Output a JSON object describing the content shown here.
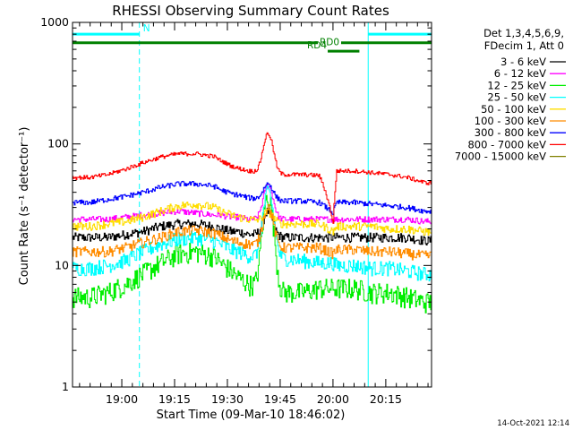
{
  "chart_data": {
    "type": "line",
    "title": "RHESSI Observing Summary Count Rates",
    "xlabel": "Start Time (09-Mar-10 18:46:02)",
    "ylabel": "Count Rate (s⁻¹ detector⁻¹)",
    "y_scale": "log",
    "ylim": [
      1,
      1000
    ],
    "y_ticks": [
      1,
      10,
      100,
      1000
    ],
    "y_tick_labels": [
      "1",
      "10",
      "100",
      "1000"
    ],
    "x_ticks": [
      "19:00",
      "19:15",
      "19:30",
      "19:45",
      "20:00",
      "20:15"
    ],
    "x_tick_minutes": [
      14,
      29,
      44,
      59,
      74,
      89
    ],
    "xlim_minutes": [
      0,
      102
    ],
    "grid": false,
    "legend_position": "right",
    "header": [
      "Det 1,3,4,5,6,9,",
      "FDecim 1, Att 0"
    ],
    "footer_date": "14-Oct-2021 12:14",
    "time_points_min": [
      0,
      5,
      10,
      15,
      20,
      25,
      30,
      35,
      40,
      42,
      45,
      47,
      50,
      55,
      60,
      65,
      70,
      74,
      75,
      80,
      85,
      90,
      95,
      100
    ],
    "series": [
      {
        "name": "3 - 6 keV",
        "color": "#000000",
        "values": [
          17,
          17,
          17,
          18,
          19,
          21,
          22,
          22,
          21,
          20,
          19,
          19,
          18,
          18,
          17,
          17,
          17,
          17,
          17,
          17,
          17,
          17,
          17,
          16
        ]
      },
      {
        "name": "6 - 12 keV",
        "color": "#ff00ff",
        "values": [
          24,
          24,
          24,
          25,
          26,
          27,
          28,
          27,
          26,
          26,
          25,
          25,
          24,
          24,
          24,
          24,
          24,
          24,
          24,
          24,
          24,
          24,
          24,
          23
        ]
      },
      {
        "name": "12 - 25 keV",
        "color": "#00ee00",
        "values": [
          5.5,
          5.5,
          6,
          7,
          8.5,
          10.5,
          12.5,
          13,
          12,
          10.5,
          9,
          8,
          7,
          6.5,
          6,
          6,
          6.5,
          6.5,
          6.5,
          6.5,
          6,
          6,
          5.5,
          5
        ]
      },
      {
        "name": "25 - 50 keV",
        "color": "#00ffff",
        "values": [
          9.5,
          9.5,
          10,
          11,
          13,
          15,
          16.5,
          17,
          16,
          15,
          13.5,
          13,
          12,
          11.5,
          11.5,
          11,
          10.5,
          10.5,
          10,
          10,
          9.5,
          9.5,
          9,
          8.5
        ]
      },
      {
        "name": "50 - 100 keV",
        "color": "#ffdd00",
        "values": [
          21,
          21,
          22,
          23,
          25,
          28,
          31,
          32,
          30,
          28,
          26,
          25,
          24,
          23,
          22,
          22,
          22,
          19,
          21,
          21,
          21,
          20,
          20,
          19
        ]
      },
      {
        "name": "100 - 300 keV",
        "color": "#ff8c00",
        "values": [
          13,
          13,
          13,
          14,
          15.5,
          17,
          19,
          19.5,
          18.5,
          17.5,
          16,
          15.5,
          15,
          14.5,
          14,
          14,
          14,
          12.5,
          13.5,
          13.5,
          13,
          13,
          12.5,
          12
        ]
      },
      {
        "name": "300 - 800 keV",
        "color": "#0000ff",
        "values": [
          33,
          33,
          35,
          37,
          40,
          44,
          47,
          47,
          45,
          42,
          39,
          38,
          36,
          35,
          34,
          34,
          33,
          27,
          33,
          33,
          32,
          31,
          30,
          28
        ]
      },
      {
        "name": "800 - 7000 keV",
        "color": "#ff0000",
        "values": [
          53,
          53,
          56,
          62,
          70,
          78,
          83,
          83,
          79,
          73,
          66,
          63,
          60,
          58,
          56,
          56,
          55,
          22,
          60,
          60,
          58,
          56,
          53,
          48
        ]
      },
      {
        "name": "7000 - 15000 keV",
        "color": "#808000",
        "values": []
      }
    ],
    "flare": {
      "peak_minute": 55.5,
      "width_minutes": 1.8,
      "peak_multiplier": [
        1.55,
        1.9,
        5.8,
        3.5,
        1.2,
        2.1,
        1.35,
        2.1
      ]
    },
    "annotations": [
      {
        "label": "N",
        "color": "#00ffff",
        "x_minutes": [
          0,
          19
        ],
        "value": 800
      },
      {
        "label": "N",
        "color": "#00ffff",
        "x_minutes": [
          84,
          102
        ],
        "value": 800
      },
      {
        "label": "RD0",
        "color": "#008000",
        "x_minutes": [
          0,
          102
        ],
        "value": 680
      },
      {
        "label": "RD4",
        "color": "#008000",
        "x_minutes": [
          72.5,
          81.5
        ],
        "value": 580
      }
    ],
    "vertical_markers": [
      {
        "style": "solid",
        "color": "#00ffff",
        "minute": 0
      },
      {
        "style": "dashed",
        "color": "#00ffff",
        "minute": 19
      },
      {
        "style": "solid",
        "color": "#00ffff",
        "minute": 84
      },
      {
        "style": "dashed",
        "color": "#00ffff",
        "minute": 102
      }
    ]
  }
}
